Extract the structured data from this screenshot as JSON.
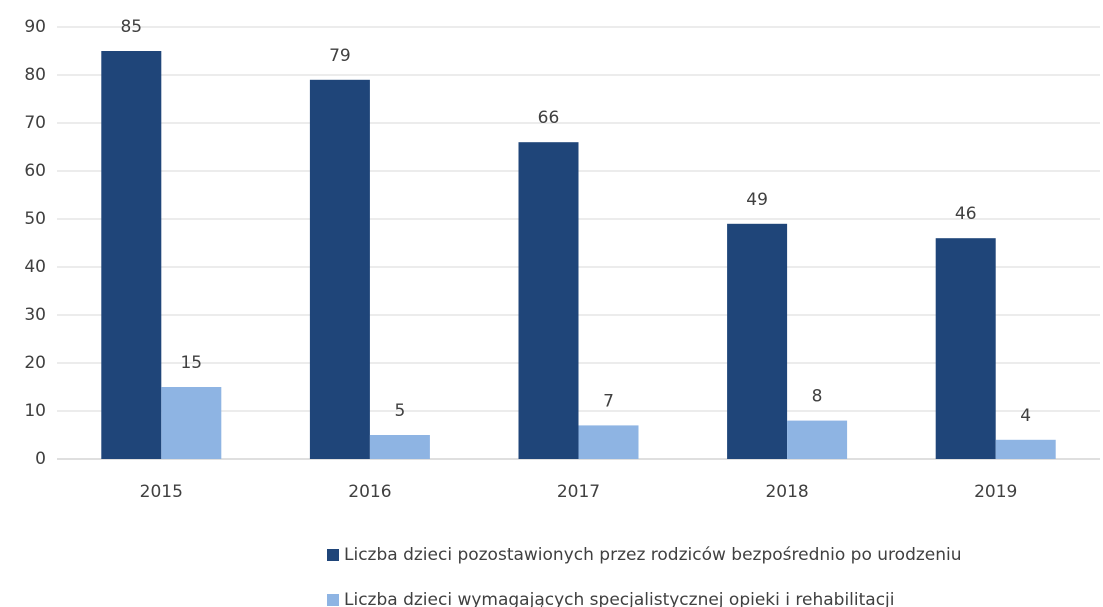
{
  "chart_data": {
    "type": "bar",
    "categories": [
      "2015",
      "2016",
      "2017",
      "2018",
      "2019"
    ],
    "series": [
      {
        "name": "Liczba dzieci pozostawionych przez rodziców bezpośrednio po urodzeniu",
        "color": "#1f4579",
        "values": [
          85,
          79,
          66,
          49,
          46
        ]
      },
      {
        "name": "Liczba dzieci wymagających specjalistycznej opieki i rehabilitacji",
        "color": "#8eb4e3",
        "values": [
          15,
          5,
          7,
          8,
          4
        ]
      }
    ],
    "ylim": [
      0,
      90
    ],
    "yticks": [
      0,
      10,
      20,
      30,
      40,
      50,
      60,
      70,
      80,
      90
    ],
    "grid": true,
    "legend": "bottom"
  }
}
